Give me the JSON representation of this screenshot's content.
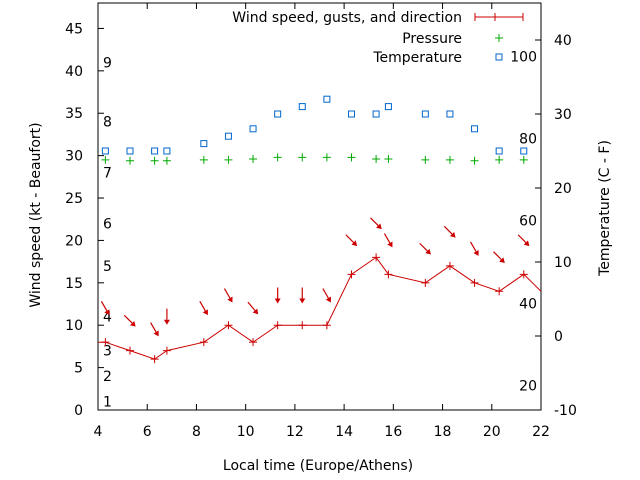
{
  "chart_data": {
    "type": "line",
    "xlabel": "Local time (Europe/Athens)",
    "ylabel_left": "Wind speed (kt - Beaufort)",
    "ylabel_right": "Temperature (C - F)",
    "xlim": [
      4,
      22
    ],
    "ylim_left": [
      0,
      48
    ],
    "ylim_right": [
      -10,
      45
    ],
    "x_ticks": [
      4,
      6,
      8,
      10,
      12,
      14,
      16,
      18,
      20,
      22
    ],
    "y_left_ticks": [
      0,
      5,
      10,
      15,
      20,
      25,
      30,
      35,
      40,
      45
    ],
    "y_right_ticks": [
      -10,
      0,
      10,
      20,
      30,
      40
    ],
    "beaufort_labels": [
      {
        "label": "1",
        "kt": 1
      },
      {
        "label": "2",
        "kt": 4
      },
      {
        "label": "3",
        "kt": 7
      },
      {
        "label": "4",
        "kt": 11
      },
      {
        "label": "5",
        "kt": 17
      },
      {
        "label": "6",
        "kt": 22
      },
      {
        "label": "7",
        "kt": 28
      },
      {
        "label": "8",
        "kt": 34
      },
      {
        "label": "9",
        "kt": 41
      }
    ],
    "fahrenheit_labels": [
      {
        "label": "20",
        "temp_c": -6.7
      },
      {
        "label": "40",
        "temp_c": 4.4
      },
      {
        "label": "60",
        "temp_c": 15.6
      },
      {
        "label": "80",
        "temp_c": 26.7
      },
      {
        "label": "100",
        "temp_c": 37.8
      }
    ],
    "legend_position": "top-right",
    "series": [
      {
        "name": "Wind speed, gusts, and direction",
        "color": "#cc0000",
        "style": "line-with-cross-markers",
        "x": [
          4.0,
          4.3,
          5.3,
          6.3,
          6.8,
          8.3,
          9.3,
          10.3,
          11.3,
          12.3,
          13.3,
          14.3,
          15.3,
          15.8,
          17.3,
          18.3,
          19.3,
          20.3,
          21.3,
          22.0
        ],
        "y": [
          8.0,
          8.0,
          7.0,
          6.0,
          7.0,
          8.0,
          10.0,
          8.0,
          10.0,
          10.0,
          10.0,
          16.0,
          18.0,
          16.0,
          15.0,
          17.0,
          15.0,
          14.0,
          16.0,
          14.0
        ]
      },
      {
        "name": "Pressure",
        "color": "#00aa00",
        "style": "plus-markers",
        "x": [
          4.3,
          5.3,
          6.3,
          6.8,
          8.3,
          9.3,
          10.3,
          11.3,
          12.3,
          13.3,
          14.3,
          15.3,
          15.8,
          17.3,
          18.3,
          19.3,
          20.3,
          21.3
        ],
        "y": [
          29.5,
          29.4,
          29.4,
          29.4,
          29.5,
          29.5,
          29.6,
          29.8,
          29.8,
          29.8,
          29.8,
          29.6,
          29.6,
          29.5,
          29.5,
          29.4,
          29.5,
          29.5
        ]
      },
      {
        "name": "Temperature",
        "color": "#0066cc",
        "style": "square-markers",
        "axis": "right",
        "x": [
          4.3,
          5.3,
          6.3,
          6.8,
          8.3,
          9.3,
          10.3,
          11.3,
          12.3,
          13.3,
          14.3,
          15.3,
          15.8,
          17.3,
          18.3,
          19.3,
          20.3,
          21.3
        ],
        "y": [
          25,
          25,
          25,
          25,
          26,
          27,
          28,
          30,
          31,
          32,
          30,
          30,
          31,
          30,
          30,
          28,
          25,
          25
        ]
      }
    ],
    "wind_direction_arrows": {
      "color": "#cc0000",
      "x": [
        4.3,
        5.3,
        6.3,
        6.8,
        8.3,
        9.3,
        10.3,
        11.3,
        12.3,
        13.3,
        14.3,
        15.3,
        15.8,
        17.3,
        18.3,
        19.3,
        20.3,
        21.3
      ],
      "kt": [
        12.0,
        10.5,
        9.5,
        11.0,
        12.0,
        13.5,
        12.0,
        13.5,
        13.5,
        13.5,
        20.0,
        22.0,
        20.0,
        19.0,
        21.0,
        19.0,
        18.0,
        20.0
      ],
      "from_deg": [
        330,
        315,
        330,
        0,
        330,
        330,
        320,
        0,
        0,
        330,
        315,
        315,
        330,
        315,
        315,
        330,
        315,
        315
      ]
    }
  }
}
